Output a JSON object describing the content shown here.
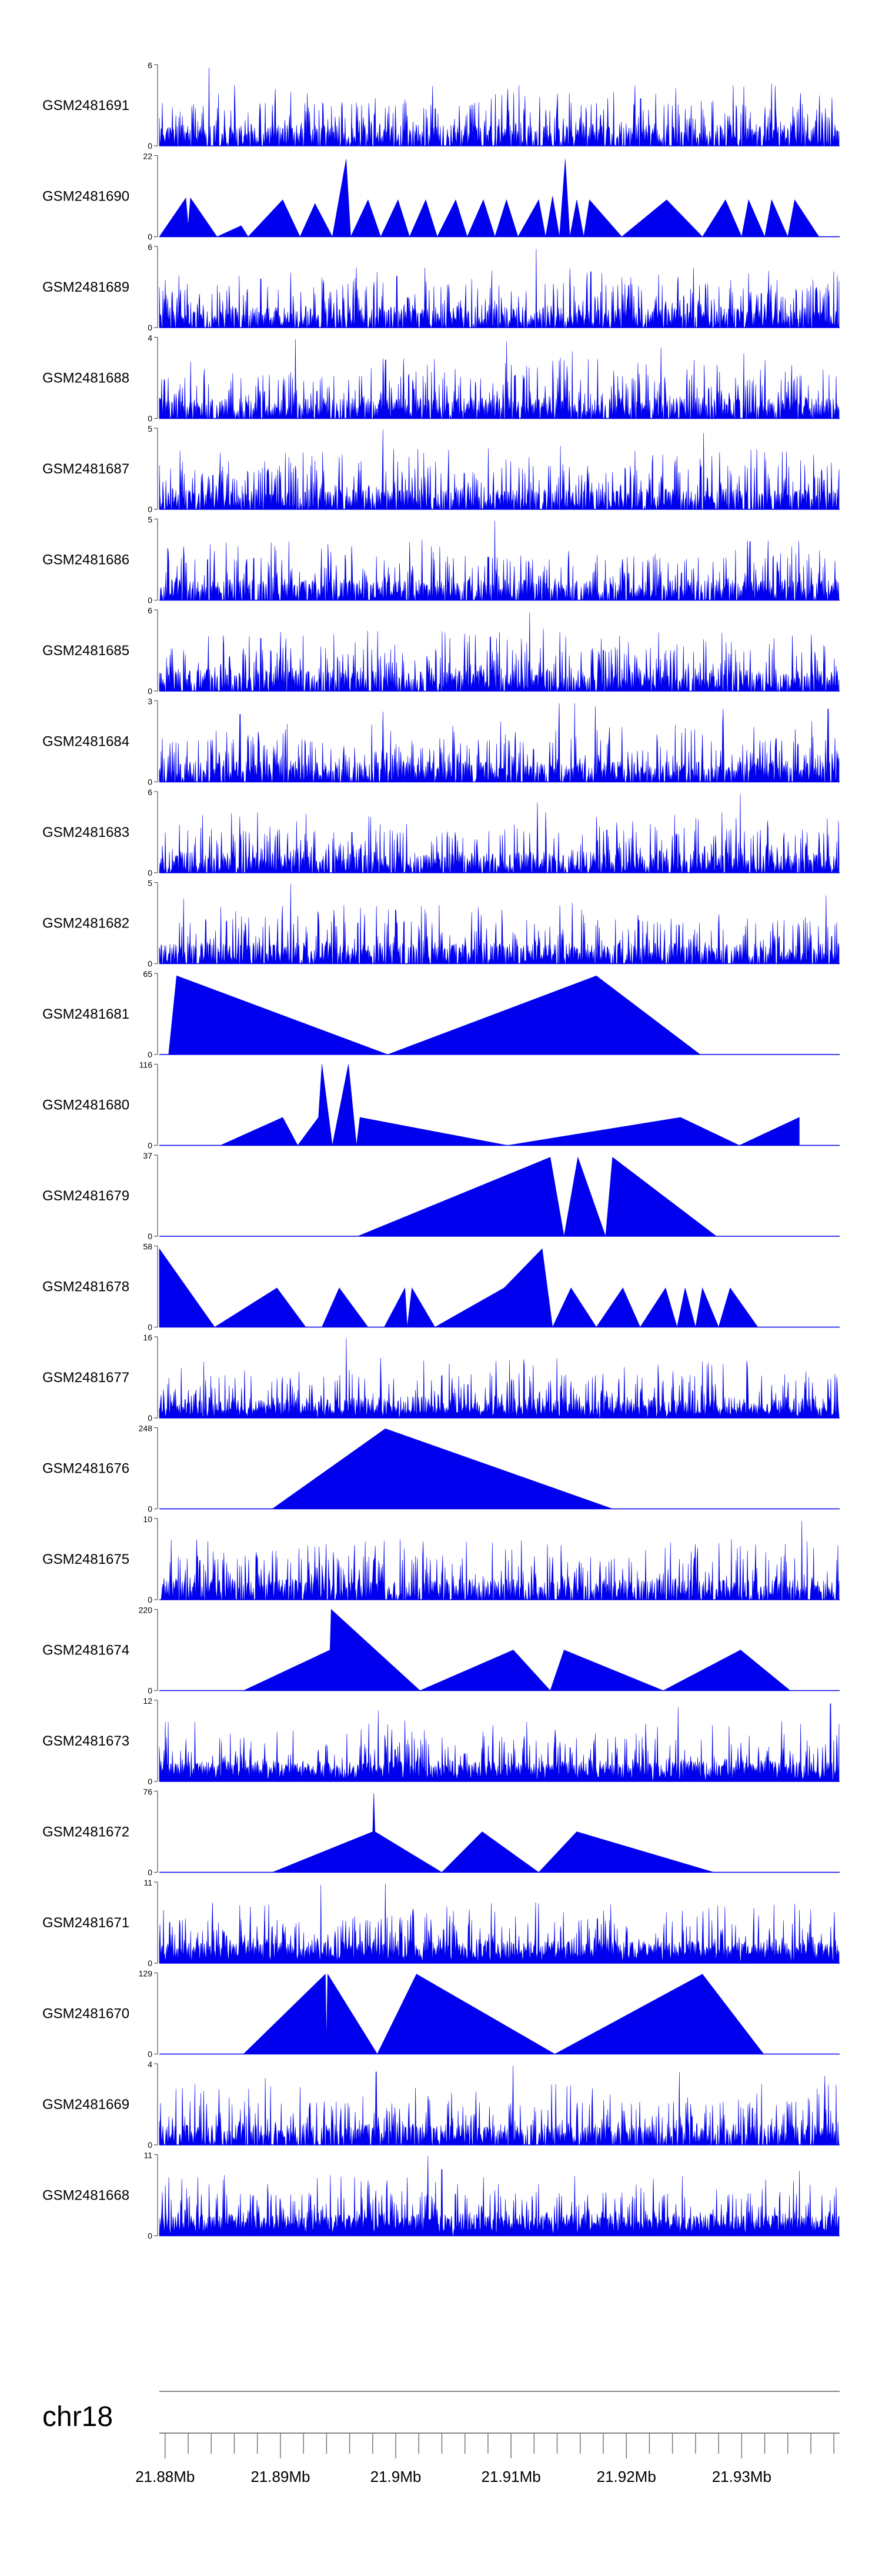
{
  "chart_data": {
    "type": "area",
    "chromosome": "chr18",
    "x_ticks": [
      "21.88Mb",
      "21.89Mb",
      "21.9Mb",
      "21.91Mb",
      "21.92Mb",
      "21.93Mb"
    ],
    "x_tick_values": [
      21.88,
      21.89,
      21.9,
      21.91,
      21.92,
      21.93
    ],
    "xlim": [
      21.8795,
      21.9385
    ],
    "fill_color": "#0000EE",
    "tracks": [
      {
        "name": "GSM2481691",
        "ymax": "6",
        "profile": "dense",
        "seed": 11,
        "peaks": [
          [
            21.8838,
            5.8
          ],
          [
            21.8815,
            2.2
          ],
          [
            21.9097,
            4.2
          ],
          [
            21.9125,
            3.6
          ],
          [
            21.9212,
            3.5
          ],
          [
            21.9326,
            4.6
          ],
          [
            21.9351,
            3.9
          ]
        ]
      },
      {
        "name": "GSM2481690",
        "ymax": "22",
        "profile": "sparse",
        "points": [
          [
            21.8795,
            0
          ],
          [
            21.8818,
            10.5
          ],
          [
            21.882,
            3
          ],
          [
            21.8822,
            10.5
          ],
          [
            21.8845,
            0
          ],
          [
            21.8866,
            3
          ],
          [
            21.8872,
            0
          ],
          [
            21.8902,
            10
          ],
          [
            21.8917,
            0
          ],
          [
            21.893,
            9
          ],
          [
            21.8945,
            0
          ],
          [
            21.8957,
            21
          ],
          [
            21.8961,
            0
          ],
          [
            21.8976,
            10
          ],
          [
            21.8987,
            0
          ],
          [
            21.9002,
            10
          ],
          [
            21.9012,
            0
          ],
          [
            21.9026,
            10
          ],
          [
            21.9036,
            0
          ],
          [
            21.9052,
            10
          ],
          [
            21.9062,
            0
          ],
          [
            21.9076,
            10
          ],
          [
            21.9086,
            0
          ],
          [
            21.9096,
            10
          ],
          [
            21.9106,
            0
          ],
          [
            21.9124,
            10
          ],
          [
            21.913,
            0
          ],
          [
            21.9136,
            11
          ],
          [
            21.9142,
            0
          ],
          [
            21.9147,
            21
          ],
          [
            21.9151,
            0
          ],
          [
            21.9157,
            10
          ],
          [
            21.9163,
            0
          ],
          [
            21.9168,
            10
          ],
          [
            21.9196,
            0
          ],
          [
            21.9235,
            10
          ],
          [
            21.9266,
            0
          ],
          [
            21.9286,
            10
          ],
          [
            21.93,
            0
          ],
          [
            21.9306,
            10
          ],
          [
            21.932,
            0
          ],
          [
            21.9326,
            10
          ],
          [
            21.934,
            0
          ],
          [
            21.9346,
            10
          ],
          [
            21.9367,
            0
          ]
        ]
      },
      {
        "name": "GSM2481689",
        "ymax": "6",
        "profile": "dense",
        "seed": 23,
        "peaks": [
          [
            21.9122,
            5.8
          ],
          [
            21.8937,
            3.5
          ],
          [
            21.9001,
            3.8
          ],
          [
            21.9196,
            3.7
          ],
          [
            21.9228,
            3.9
          ],
          [
            21.9306,
            4.0
          ],
          [
            21.8883,
            3.6
          ]
        ]
      },
      {
        "name": "GSM2481688",
        "ymax": "4",
        "profile": "dense",
        "seed": 37,
        "peaks": [
          [
            21.8913,
            3.9
          ],
          [
            21.9096,
            3.8
          ],
          [
            21.923,
            3.5
          ],
          [
            21.9302,
            3.2
          ],
          [
            21.8822,
            2.8
          ],
          [
            21.9153,
            3.3
          ]
        ]
      },
      {
        "name": "GSM2481687",
        "ymax": "5",
        "profile": "dense",
        "seed": 41,
        "peaks": [
          [
            21.8989,
            4.9
          ],
          [
            21.9267,
            4.7
          ],
          [
            21.8813,
            3.6
          ],
          [
            21.9143,
            3.9
          ],
          [
            21.9313,
            3.7
          ],
          [
            21.893,
            3.0
          ]
        ]
      },
      {
        "name": "GSM2481686",
        "ymax": "5",
        "profile": "dense",
        "seed": 53,
        "peaks": [
          [
            21.9086,
            4.9
          ],
          [
            21.9038,
            3.3
          ],
          [
            21.8956,
            2.8
          ],
          [
            21.905,
            2.6
          ],
          [
            21.9117,
            2.0
          ],
          [
            21.9196,
            2.2
          ]
        ]
      },
      {
        "name": "GSM2481685",
        "ymax": "6",
        "profile": "dense",
        "seed": 67,
        "peaks": [
          [
            21.9116,
            5.8
          ],
          [
            21.8883,
            3.9
          ],
          [
            21.8965,
            3.6
          ],
          [
            21.9082,
            4.0
          ],
          [
            21.9194,
            4.1
          ],
          [
            21.9128,
            4.6
          ]
        ]
      },
      {
        "name": "GSM2481684",
        "ymax": "3",
        "profile": "dense",
        "seed": 79,
        "peaks": [
          [
            21.9142,
            2.9
          ],
          [
            21.8989,
            2.6
          ],
          [
            21.9155,
            2.9
          ],
          [
            21.9173,
            2.8
          ],
          [
            21.8865,
            2.5
          ],
          [
            21.9284,
            2.7
          ],
          [
            21.9375,
            2.7
          ]
        ]
      },
      {
        "name": "GSM2481683",
        "ymax": "6",
        "profile": "dense",
        "seed": 83,
        "peaks": [
          [
            21.9299,
            5.8
          ],
          [
            21.9123,
            5.2
          ],
          [
            21.8914,
            3.8
          ],
          [
            21.8962,
            3.0
          ],
          [
            21.9058,
            2.6
          ],
          [
            21.9367,
            3.0
          ]
        ]
      },
      {
        "name": "GSM2481682",
        "ymax": "5",
        "profile": "dense",
        "seed": 97,
        "peaks": [
          [
            21.8909,
            4.9
          ],
          [
            21.8816,
            4.0
          ],
          [
            21.8955,
            3.6
          ],
          [
            21.9,
            3.3
          ],
          [
            21.9373,
            4.2
          ],
          [
            21.921,
            3.0
          ]
        ]
      },
      {
        "name": "GSM2481681",
        "ymax": "65",
        "profile": "sparse",
        "points": [
          [
            21.8803,
            0
          ],
          [
            21.881,
            63
          ],
          [
            21.8993,
            0
          ],
          [
            21.9174,
            63
          ],
          [
            21.9264,
            0
          ]
        ]
      },
      {
        "name": "GSM2481680",
        "ymax": "116",
        "profile": "sparse",
        "points": [
          [
            21.8848,
            0
          ],
          [
            21.8902,
            40
          ],
          [
            21.8915,
            0
          ],
          [
            21.8933,
            40
          ],
          [
            21.8936,
            116
          ],
          [
            21.8945,
            0
          ],
          [
            21.8959,
            116
          ],
          [
            21.8966,
            0
          ],
          [
            21.8969,
            40
          ],
          [
            21.9097,
            0
          ],
          [
            21.9247,
            40
          ],
          [
            21.9298,
            0
          ],
          [
            21.935,
            40
          ]
        ]
      },
      {
        "name": "GSM2481679",
        "ymax": "37",
        "profile": "sparse",
        "points": [
          [
            21.8967,
            0
          ],
          [
            21.9134,
            36
          ],
          [
            21.9146,
            0
          ],
          [
            21.9158,
            36
          ],
          [
            21.9182,
            0
          ],
          [
            21.9188,
            36
          ],
          [
            21.9278,
            0
          ]
        ]
      },
      {
        "name": "GSM2481678",
        "ymax": "58",
        "profile": "sparse",
        "points": [
          [
            21.8795,
            56
          ],
          [
            21.8843,
            0
          ],
          [
            21.8897,
            28
          ],
          [
            21.8922,
            0
          ],
          [
            21.8936,
            0
          ],
          [
            21.8951,
            28
          ],
          [
            21.8976,
            0
          ],
          [
            21.899,
            0
          ],
          [
            21.9008,
            28
          ],
          [
            21.901,
            0
          ],
          [
            21.9014,
            28
          ],
          [
            21.9034,
            0
          ],
          [
            21.9094,
            28
          ],
          [
            21.9127,
            56
          ],
          [
            21.9136,
            0
          ],
          [
            21.9152,
            28
          ],
          [
            21.9174,
            0
          ],
          [
            21.9197,
            28
          ],
          [
            21.9212,
            0
          ],
          [
            21.9234,
            28
          ],
          [
            21.9244,
            0
          ],
          [
            21.9251,
            28
          ],
          [
            21.926,
            0
          ],
          [
            21.9266,
            28
          ],
          [
            21.928,
            0
          ],
          [
            21.929,
            28
          ],
          [
            21.9314,
            0
          ]
        ]
      },
      {
        "name": "GSM2481677",
        "ymax": "16",
        "profile": "dense",
        "seed": 101,
        "base": 0.12,
        "peaks": [
          [
            21.8957,
            15.7
          ],
          [
            21.8912,
            5
          ],
          [
            21.8935,
            4.5
          ],
          [
            21.8898,
            4
          ],
          [
            21.8958,
            3.4
          ],
          [
            21.8987,
            3.6
          ]
        ]
      },
      {
        "name": "GSM2481676",
        "ymax": "248",
        "profile": "sparse",
        "points": [
          [
            21.8893,
            0
          ],
          [
            21.8991,
            245
          ],
          [
            21.9188,
            0
          ]
        ]
      },
      {
        "name": "GSM2481675",
        "ymax": "10",
        "profile": "dense",
        "seed": 113,
        "peaks": [
          [
            21.9352,
            9.7
          ],
          [
            21.8837,
            7.2
          ],
          [
            21.8813,
            5.0
          ],
          [
            21.8896,
            6.0
          ],
          [
            21.899,
            6.8
          ],
          [
            21.9095,
            6.2
          ],
          [
            21.9262,
            6.4
          ]
        ]
      },
      {
        "name": "GSM2481674",
        "ymax": "220",
        "profile": "sparse",
        "points": [
          [
            21.8868,
            0
          ],
          [
            21.8943,
            110
          ],
          [
            21.8944,
            220
          ],
          [
            21.9021,
            0
          ],
          [
            21.9102,
            110
          ],
          [
            21.9134,
            0
          ],
          [
            21.9146,
            110
          ],
          [
            21.9232,
            0
          ],
          [
            21.9299,
            110
          ],
          [
            21.9342,
            0
          ]
        ]
      },
      {
        "name": "GSM2481673",
        "ymax": "12",
        "profile": "dense",
        "seed": 127,
        "base": 0.25,
        "peaks": [
          [
            21.9377,
            11.5
          ],
          [
            21.8985,
            10.5
          ],
          [
            21.9245,
            11
          ],
          [
            21.8801,
            6.5
          ],
          [
            21.911,
            5
          ],
          [
            21.9192,
            5
          ]
        ]
      },
      {
        "name": "GSM2481672",
        "ymax": "76",
        "profile": "sparse",
        "points": [
          [
            21.8893,
            0
          ],
          [
            21.898,
            38
          ],
          [
            21.8981,
            74
          ],
          [
            21.8982,
            38
          ],
          [
            21.904,
            0
          ],
          [
            21.9075,
            38
          ],
          [
            21.9124,
            0
          ],
          [
            21.9157,
            38
          ],
          [
            21.9276,
            0
          ]
        ]
      },
      {
        "name": "GSM2481671",
        "ymax": "11",
        "profile": "dense",
        "seed": 131,
        "base": 0.3,
        "peaks": [
          [
            21.8935,
            10.6
          ],
          [
            21.8991,
            10.8
          ],
          [
            21.935,
            7.2
          ],
          [
            21.8804,
            5.5
          ],
          [
            21.9004,
            6.2
          ],
          [
            21.9086,
            7.0
          ],
          [
            21.895,
            5.0
          ]
        ]
      },
      {
        "name": "GSM2481670",
        "ymax": "129",
        "profile": "sparse",
        "points": [
          [
            21.8868,
            0
          ],
          [
            21.8939,
            127
          ],
          [
            21.894,
            20
          ],
          [
            21.8941,
            127
          ],
          [
            21.8984,
            0
          ],
          [
            21.9018,
            127
          ],
          [
            21.9138,
            0
          ],
          [
            21.9266,
            127
          ],
          [
            21.9319,
            0
          ]
        ]
      },
      {
        "name": "GSM2481669",
        "ymax": "4",
        "profile": "dense",
        "seed": 139,
        "peaks": [
          [
            21.9102,
            3.9
          ],
          [
            21.8983,
            3.6
          ],
          [
            21.9246,
            3.6
          ],
          [
            21.9372,
            3.4
          ],
          [
            21.8887,
            3.3
          ]
        ]
      },
      {
        "name": "GSM2481668",
        "ymax": "11",
        "profile": "dense",
        "seed": 149,
        "base": 0.3,
        "peaks": [
          [
            21.9028,
            10.8
          ],
          [
            21.904,
            9
          ],
          [
            21.935,
            8.8
          ],
          [
            21.8976,
            7.5
          ],
          [
            21.88,
            5.0
          ],
          [
            21.9124,
            7.0
          ],
          [
            21.9232,
            5.5
          ]
        ]
      }
    ]
  }
}
